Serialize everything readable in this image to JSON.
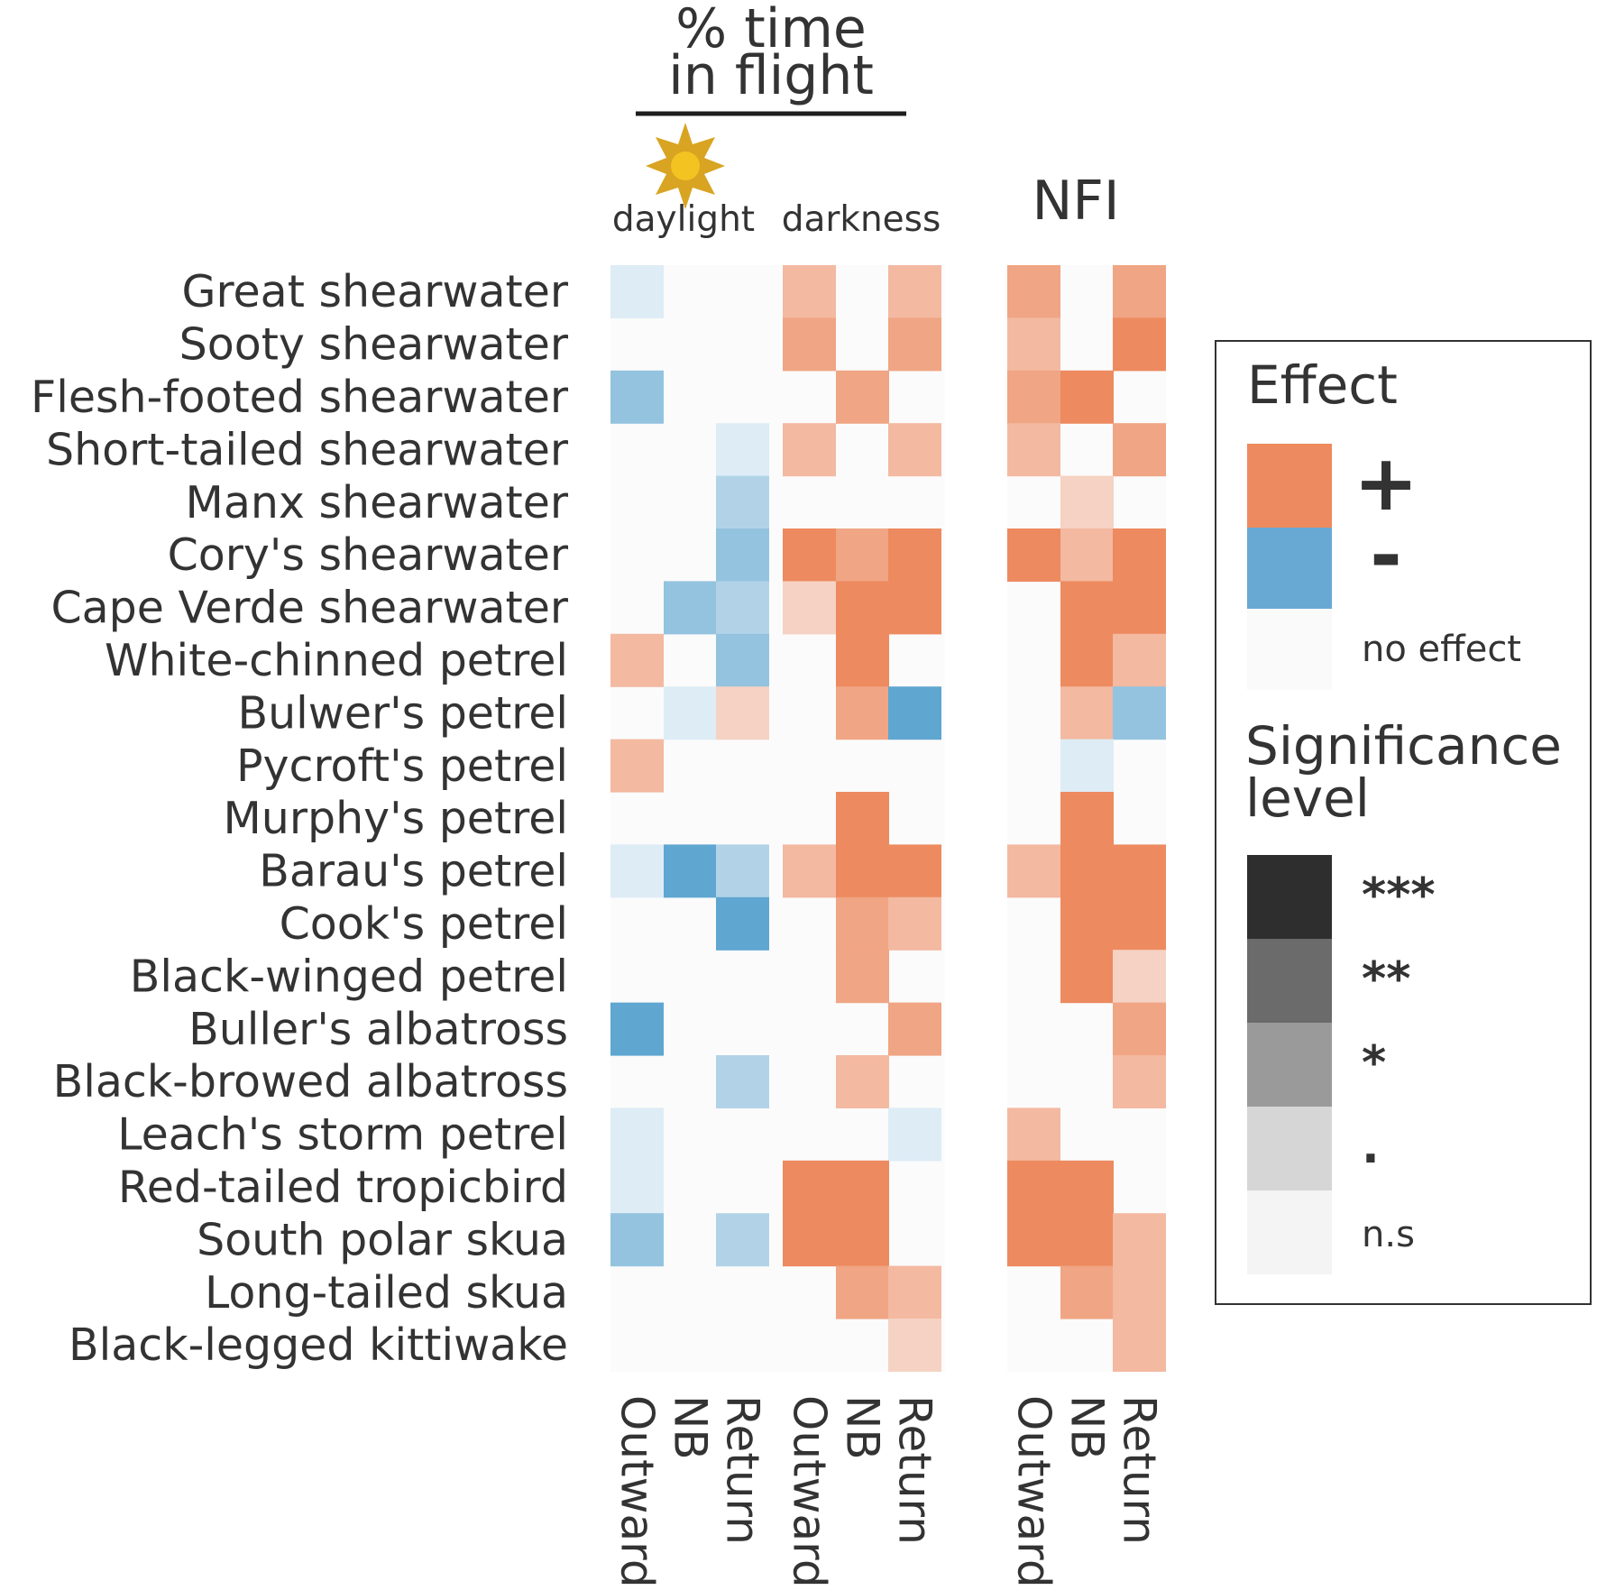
{
  "chart_data": {
    "type": "heatmap",
    "header": {
      "title_line1": "% time",
      "title_line2": "in flight",
      "daylight_label": "daylight",
      "darkness_label": "darkness",
      "nfi_label": "NFI"
    },
    "panels": [
      {
        "name": "daylight",
        "columns": [
          "Outward",
          "NB",
          "Return"
        ]
      },
      {
        "name": "darkness",
        "columns": [
          "Outward",
          "NB",
          "Return"
        ]
      },
      {
        "name": "NFI",
        "columns": [
          "Outward",
          "NB",
          "Return"
        ]
      }
    ],
    "species": [
      "Great shearwater",
      "Sooty shearwater",
      "Flesh-footed shearwater",
      "Short-tailed shearwater",
      "Manx shearwater",
      "Cory's shearwater",
      "Cape Verde shearwater",
      "White-chinned petrel",
      "Bulwer's petrel",
      "Pycroft's petrel",
      "Murphy's petrel",
      "Barau's petrel",
      "Cook's petrel",
      "Black-winged petrel",
      "Buller's albatross",
      "Black-browed albatross",
      "Leach's storm petrel",
      "Red-tailed tropicbird",
      "South polar skua",
      "Long-tailed skua",
      "Black-legged kittiwake"
    ],
    "value_encoding": "sign = effect direction (+ positive, - negative, 0 no effect); magnitude 1-4 = significance level (1 n.s, 2 '.', 3 '*', 4 '**')",
    "values": [
      [
        -1,
        0,
        0,
        2,
        0,
        2,
        3,
        0,
        3
      ],
      [
        0,
        0,
        0,
        3,
        0,
        3,
        2,
        0,
        4
      ],
      [
        -3,
        0,
        0,
        0,
        3,
        0,
        3,
        4,
        0
      ],
      [
        0,
        0,
        -1,
        2,
        0,
        2,
        2,
        0,
        3
      ],
      [
        0,
        0,
        -2,
        0,
        0,
        0,
        0,
        1,
        0
      ],
      [
        0,
        0,
        -3,
        4,
        3,
        4,
        4,
        2,
        4
      ],
      [
        0,
        -3,
        -2,
        1,
        4,
        4,
        0,
        4,
        4
      ],
      [
        2,
        0,
        -3,
        0,
        4,
        0,
        0,
        4,
        2
      ],
      [
        0,
        -1,
        1,
        0,
        3,
        -4,
        0,
        2,
        -3
      ],
      [
        2,
        0,
        0,
        0,
        0,
        0,
        0,
        -1,
        0
      ],
      [
        0,
        0,
        0,
        0,
        4,
        0,
        0,
        4,
        0
      ],
      [
        -1,
        -4,
        -2,
        2,
        4,
        4,
        2,
        4,
        4
      ],
      [
        0,
        0,
        -4,
        0,
        3,
        2,
        0,
        4,
        4
      ],
      [
        0,
        0,
        0,
        0,
        3,
        0,
        0,
        4,
        1
      ],
      [
        -4,
        0,
        0,
        0,
        0,
        3,
        0,
        0,
        3
      ],
      [
        0,
        0,
        -2,
        0,
        2,
        0,
        0,
        0,
        2
      ],
      [
        -1,
        0,
        0,
        0,
        0,
        -1,
        2,
        0,
        0
      ],
      [
        -1,
        0,
        0,
        4,
        4,
        0,
        4,
        4,
        0
      ],
      [
        -3,
        0,
        -2,
        4,
        4,
        0,
        4,
        4,
        2
      ],
      [
        0,
        0,
        0,
        0,
        3,
        2,
        0,
        3,
        2
      ],
      [
        0,
        0,
        0,
        0,
        0,
        1,
        0,
        0,
        2
      ]
    ],
    "legend": {
      "effect_title": "Effect",
      "plus_label": "+",
      "minus_label": "-",
      "no_effect_label": "no effect",
      "significance_title_line1": "Significance",
      "significance_title_line2": "level",
      "levels": [
        "***",
        "**",
        "*",
        ".",
        "n.s"
      ],
      "effect_colors": {
        "positive": "#ee8a5f",
        "negative": "#68a9d3",
        "none": "#fafafa"
      },
      "level_colors": [
        "#2e2e2e",
        "#6b6b6b",
        "#9a9a9a",
        "#d6d6d6",
        "#f4f4f4"
      ]
    },
    "cell_colors": {
      "positive": [
        "#f5d2c3",
        "#f3b9a1",
        "#f0a584",
        "#ed8a5f"
      ],
      "negative": [
        "#deecf6",
        "#b2d3e7",
        "#94c3df",
        "#5fa6d1"
      ],
      "none": "#fbfbfb"
    }
  }
}
